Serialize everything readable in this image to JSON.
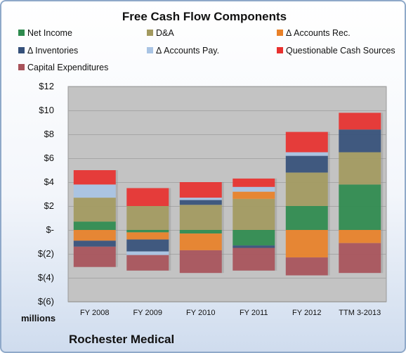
{
  "chart_data": {
    "type": "bar",
    "stacked": true,
    "title": "Free Cash Flow Components",
    "ylabel": "millions",
    "ylim": [
      -6,
      12
    ],
    "yticks": [
      12,
      10,
      8,
      6,
      4,
      2,
      0,
      -2,
      -4,
      -6
    ],
    "ytick_labels": [
      "$12",
      "$10",
      "$8",
      "$6",
      "$4",
      "$2",
      "$-",
      "$(2)",
      "$(4)",
      "$(6)"
    ],
    "categories": [
      "FY 2008",
      "FY 2009",
      "FY 2010",
      "FY 2011",
      "FY 2012",
      "TTM 3-2013"
    ],
    "grid": true,
    "legend_position": "top",
    "series": [
      {
        "name": "Net Income",
        "color": "#2e8b4e",
        "values": [
          0.7,
          -0.2,
          -0.3,
          -1.3,
          2.0,
          3.8
        ]
      },
      {
        "name": "D&A",
        "color": "#a39a5f",
        "values": [
          2.0,
          2.0,
          2.1,
          2.6,
          2.8,
          2.7
        ]
      },
      {
        "name": "Δ Accounts Rec.",
        "color": "#e98128",
        "values": [
          -0.9,
          -0.6,
          -1.4,
          0.6,
          -2.3,
          -1.1
        ]
      },
      {
        "name": "Δ Inventories",
        "color": "#35507a",
        "values": [
          -0.5,
          -1.0,
          0.4,
          -0.2,
          1.4,
          1.9
        ]
      },
      {
        "name": "Δ Accounts Pay.",
        "color": "#a9c4e4",
        "values": [
          1.1,
          -0.3,
          0.2,
          0.4,
          0.3,
          0.0
        ]
      },
      {
        "name": "Questionable Cash Sources",
        "color": "#e8312f",
        "values": [
          1.2,
          1.5,
          1.3,
          0.7,
          1.7,
          1.4
        ]
      },
      {
        "name": "Capital Expenditures",
        "color": "#a8525a",
        "values": [
          -1.7,
          -1.3,
          -1.9,
          -1.9,
          -1.5,
          -2.5
        ]
      }
    ],
    "company": "Rochester Medical"
  }
}
